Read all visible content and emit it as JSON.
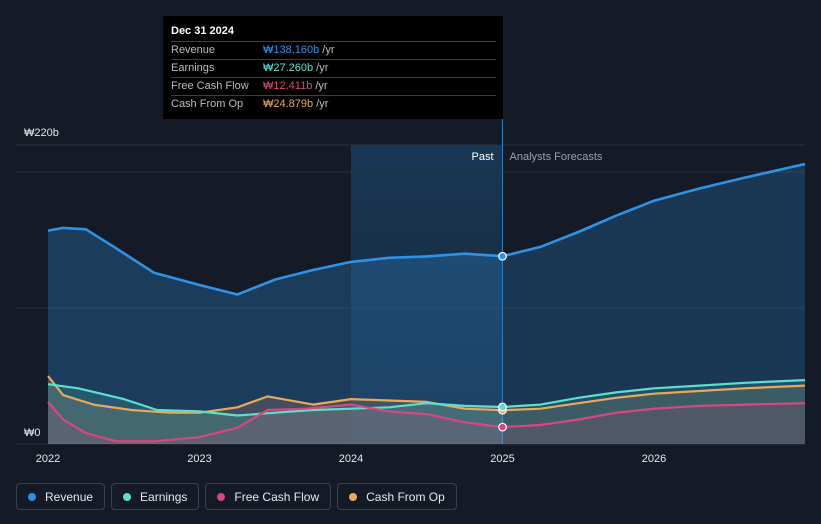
{
  "chart_data": {
    "type": "area",
    "y_axis": {
      "top_label": "₩220b",
      "bottom_label": "₩0",
      "ylim": [
        0,
        220
      ]
    },
    "x_axis": {
      "ticks": [
        "2022",
        "2023",
        "2024",
        "2025",
        "2026"
      ],
      "xlim": [
        2021.9,
        2027.0
      ]
    },
    "divider": {
      "x": 2025.0,
      "past_label": "Past",
      "forecast_label": "Analysts Forecasts"
    },
    "series": [
      {
        "name": "Revenue",
        "color": "#2e93e6",
        "points": [
          [
            2021.9,
            157
          ],
          [
            2022.1,
            159
          ],
          [
            2022.25,
            158
          ],
          [
            2022.45,
            144
          ],
          [
            2022.7,
            126
          ],
          [
            2023.0,
            117
          ],
          [
            2023.25,
            110
          ],
          [
            2023.5,
            121
          ],
          [
            2023.75,
            128
          ],
          [
            2024.0,
            134
          ],
          [
            2024.25,
            137
          ],
          [
            2024.5,
            138
          ],
          [
            2024.75,
            140
          ],
          [
            2025.0,
            138.16
          ],
          [
            2025.25,
            145
          ],
          [
            2025.5,
            156
          ],
          [
            2025.75,
            168
          ],
          [
            2026.0,
            179
          ],
          [
            2026.3,
            188
          ],
          [
            2026.6,
            196
          ],
          [
            2027.0,
            206
          ]
        ]
      },
      {
        "name": "Earnings",
        "color": "#5ae0d0",
        "points": [
          [
            2021.9,
            44
          ],
          [
            2022.2,
            41
          ],
          [
            2022.5,
            33
          ],
          [
            2022.72,
            25
          ],
          [
            2023.0,
            24
          ],
          [
            2023.25,
            21
          ],
          [
            2023.5,
            23
          ],
          [
            2023.75,
            25
          ],
          [
            2024.0,
            26
          ],
          [
            2024.25,
            27
          ],
          [
            2024.5,
            30
          ],
          [
            2024.75,
            28
          ],
          [
            2025.0,
            27.26
          ],
          [
            2025.25,
            29
          ],
          [
            2025.5,
            34
          ],
          [
            2025.75,
            38
          ],
          [
            2026.0,
            41
          ],
          [
            2026.3,
            43
          ],
          [
            2026.6,
            45
          ],
          [
            2027.0,
            47
          ]
        ]
      },
      {
        "name": "Free Cash Flow",
        "color": "#d9477f",
        "points": [
          [
            2021.9,
            31
          ],
          [
            2022.1,
            18
          ],
          [
            2022.25,
            8
          ],
          [
            2022.45,
            2
          ],
          [
            2022.7,
            2
          ],
          [
            2023.0,
            5
          ],
          [
            2023.25,
            12
          ],
          [
            2023.45,
            25
          ],
          [
            2023.7,
            26
          ],
          [
            2024.0,
            29
          ],
          [
            2024.25,
            24
          ],
          [
            2024.5,
            22
          ],
          [
            2024.75,
            16
          ],
          [
            2025.0,
            12.411
          ],
          [
            2025.25,
            14
          ],
          [
            2025.5,
            18
          ],
          [
            2025.75,
            23
          ],
          [
            2026.0,
            26
          ],
          [
            2026.3,
            28
          ],
          [
            2026.6,
            29
          ],
          [
            2027.0,
            30
          ]
        ]
      },
      {
        "name": "Cash From Op",
        "color": "#e8a95c",
        "points": [
          [
            2021.9,
            50
          ],
          [
            2022.1,
            36
          ],
          [
            2022.3,
            29
          ],
          [
            2022.55,
            25
          ],
          [
            2022.8,
            23
          ],
          [
            2023.0,
            23
          ],
          [
            2023.25,
            27
          ],
          [
            2023.45,
            35
          ],
          [
            2023.75,
            29
          ],
          [
            2024.0,
            33
          ],
          [
            2024.25,
            32
          ],
          [
            2024.5,
            31
          ],
          [
            2024.75,
            26
          ],
          [
            2025.0,
            24.879
          ],
          [
            2025.25,
            26
          ],
          [
            2025.5,
            30
          ],
          [
            2025.75,
            34
          ],
          [
            2026.0,
            37
          ],
          [
            2026.3,
            39
          ],
          [
            2026.6,
            41
          ],
          [
            2027.0,
            43
          ]
        ]
      }
    ]
  },
  "tooltip": {
    "date": "Dec 31 2024",
    "unit": "/yr",
    "rows": [
      {
        "label": "Revenue",
        "value": "₩138.160b",
        "color": "#2e93e6"
      },
      {
        "label": "Earnings",
        "value": "₩27.260b",
        "color": "#5ae0d0"
      },
      {
        "label": "Free Cash Flow",
        "value": "₩12.411b",
        "color": "#d9477f"
      },
      {
        "label": "Cash From Op",
        "value": "₩24.879b",
        "color": "#e8a95c"
      }
    ]
  },
  "legend": [
    {
      "label": "Revenue",
      "color": "#2e93e6"
    },
    {
      "label": "Earnings",
      "color": "#5ae0d0"
    },
    {
      "label": "Free Cash Flow",
      "color": "#d9477f"
    },
    {
      "label": "Cash From Op",
      "color": "#e8a95c"
    }
  ]
}
